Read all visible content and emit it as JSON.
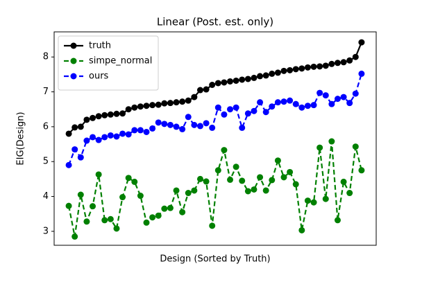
{
  "chart_data": {
    "type": "line",
    "title": "Linear (Post. est. only)",
    "x_label": "Design (Sorted by Truth)",
    "y_label": "EIG(Design)",
    "categories": [
      null,
      null,
      null,
      null,
      null,
      null,
      null,
      null,
      null,
      null,
      null,
      null,
      null,
      null,
      null,
      null,
      null,
      null,
      null,
      null,
      null,
      null,
      null,
      null,
      null,
      null,
      null,
      null,
      null,
      null,
      null,
      null,
      null,
      null,
      null,
      null,
      null,
      null,
      null,
      null,
      null,
      null,
      null,
      null,
      null,
      null,
      null,
      null,
      null,
      null
    ],
    "series": [
      {
        "name": "truth",
        "color": "#000000",
        "dashed": false,
        "values": [
          5.8,
          5.98,
          6.0,
          6.2,
          6.25,
          6.3,
          6.33,
          6.35,
          6.37,
          6.38,
          6.5,
          6.55,
          6.58,
          6.6,
          6.62,
          6.63,
          6.67,
          6.68,
          6.7,
          6.72,
          6.75,
          6.85,
          7.05,
          7.07,
          7.2,
          7.25,
          7.27,
          7.3,
          7.32,
          7.35,
          7.37,
          7.4,
          7.45,
          7.47,
          7.52,
          7.55,
          7.6,
          7.62,
          7.65,
          7.67,
          7.7,
          7.72,
          7.73,
          7.75,
          7.8,
          7.83,
          7.85,
          7.9,
          8.0,
          8.42
        ]
      },
      {
        "name": "simpe_normal",
        "color": "#008000",
        "dashed": true,
        "values": [
          3.73,
          2.85,
          4.05,
          3.28,
          3.72,
          4.63,
          3.32,
          3.35,
          3.08,
          3.98,
          4.53,
          4.42,
          4.02,
          3.25,
          3.4,
          3.45,
          3.65,
          3.67,
          4.17,
          3.55,
          4.1,
          4.17,
          4.5,
          4.43,
          3.16,
          4.75,
          5.33,
          4.48,
          4.85,
          4.45,
          4.15,
          4.2,
          4.55,
          4.17,
          4.47,
          5.03,
          4.55,
          4.7,
          4.35,
          3.03,
          3.88,
          3.83,
          5.4,
          3.93,
          5.58,
          3.32,
          4.42,
          4.1,
          5.43,
          4.75
        ]
      },
      {
        "name": "ours",
        "color": "#0000ff",
        "dashed": true,
        "values": [
          4.9,
          5.35,
          5.12,
          5.6,
          5.7,
          5.62,
          5.7,
          5.75,
          5.72,
          5.8,
          5.78,
          5.9,
          5.9,
          5.85,
          5.95,
          6.12,
          6.08,
          6.05,
          6.0,
          5.93,
          6.28,
          6.05,
          6.02,
          6.1,
          5.97,
          6.55,
          6.35,
          6.5,
          6.55,
          5.97,
          6.38,
          6.45,
          6.7,
          6.42,
          6.58,
          6.7,
          6.72,
          6.75,
          6.65,
          6.55,
          6.6,
          6.62,
          6.97,
          6.9,
          6.65,
          6.8,
          6.85,
          6.68,
          6.95,
          7.52
        ]
      }
    ],
    "ylim": [
      2.6,
      8.72
    ],
    "yticks": [
      3,
      4,
      5,
      6,
      7,
      8
    ],
    "grid": false,
    "legend": "upper left"
  }
}
